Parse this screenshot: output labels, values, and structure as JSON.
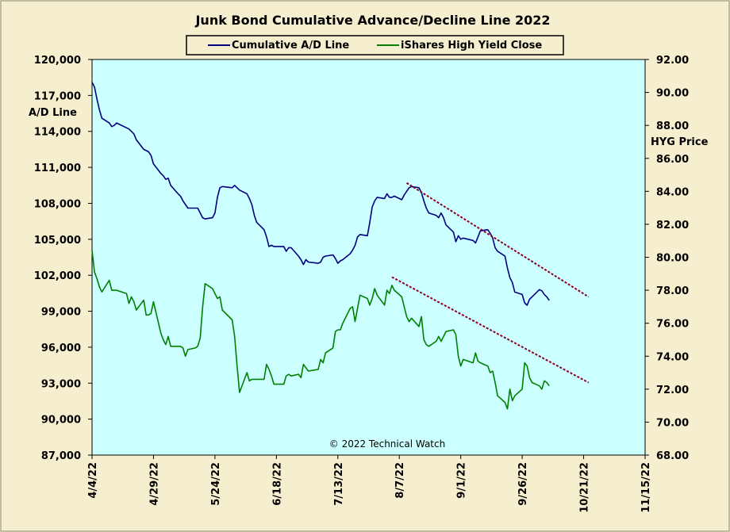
{
  "chart_data": {
    "type": "line",
    "title": "Junk Bond Cumulative  Advance/Decline  Line  2022",
    "watermark": "© 2022 Technical Watch",
    "ylabel_left": "A/D Line",
    "ylabel_right": "HYG Price",
    "grid": false,
    "legend_position": "top",
    "colors": {
      "background": "#f5efcf",
      "plot_area": "#ccffff",
      "ad_line": "#000080",
      "hyg_line": "#008000",
      "trendline": "#8b0020"
    },
    "left_axis": {
      "min": 87000,
      "max": 120000,
      "ticks": [
        "120,000",
        "117,000",
        "114,000",
        "111,000",
        "108,000",
        "105,000",
        "102,000",
        "99,000",
        "96,000",
        "93,000",
        "90,000",
        "87,000"
      ]
    },
    "right_axis": {
      "min": 68,
      "max": 92,
      "ticks": [
        "92.00",
        "90.00",
        "88.00",
        "86.00",
        "84.00",
        "82.00",
        "80.00",
        "78.00",
        "76.00",
        "74.00",
        "72.00",
        "70.00",
        "68.00"
      ]
    },
    "x_axis": {
      "start": "2022-04-04",
      "end": "2022-11-15",
      "tick_labels": [
        "4/4/22",
        "4/29/22",
        "5/24/22",
        "6/18/22",
        "7/13/22",
        "8/7/22",
        "9/1/22",
        "9/26/22",
        "10/21/22",
        "11/15/22"
      ]
    },
    "series": [
      {
        "name": "Cumulative A/D Line",
        "axis": "left",
        "x": [
          "2022-04-04",
          "2022-04-05",
          "2022-04-06",
          "2022-04-07",
          "2022-04-08",
          "2022-04-11",
          "2022-04-12",
          "2022-04-13",
          "2022-04-14",
          "2022-04-18",
          "2022-04-19",
          "2022-04-20",
          "2022-04-21",
          "2022-04-22",
          "2022-04-25",
          "2022-04-26",
          "2022-04-27",
          "2022-04-28",
          "2022-04-29",
          "2022-05-02",
          "2022-05-03",
          "2022-05-04",
          "2022-05-05",
          "2022-05-06",
          "2022-05-09",
          "2022-05-10",
          "2022-05-11",
          "2022-05-12",
          "2022-05-13",
          "2022-05-16",
          "2022-05-17",
          "2022-05-18",
          "2022-05-19",
          "2022-05-20",
          "2022-05-23",
          "2022-05-24",
          "2022-05-25",
          "2022-05-26",
          "2022-05-27",
          "2022-05-31",
          "2022-06-01",
          "2022-06-02",
          "2022-06-03",
          "2022-06-06",
          "2022-06-07",
          "2022-06-08",
          "2022-06-09",
          "2022-06-10",
          "2022-06-13",
          "2022-06-14",
          "2022-06-15",
          "2022-06-16",
          "2022-06-17",
          "2022-06-21",
          "2022-06-22",
          "2022-06-23",
          "2022-06-24",
          "2022-06-27",
          "2022-06-28",
          "2022-06-29",
          "2022-06-30",
          "2022-07-01",
          "2022-07-05",
          "2022-07-06",
          "2022-07-07",
          "2022-07-08",
          "2022-07-11",
          "2022-07-12",
          "2022-07-13",
          "2022-07-14",
          "2022-07-15",
          "2022-07-18",
          "2022-07-19",
          "2022-07-20",
          "2022-07-21",
          "2022-07-22",
          "2022-07-25",
          "2022-07-26",
          "2022-07-27",
          "2022-07-28",
          "2022-07-29",
          "2022-08-01",
          "2022-08-02",
          "2022-08-03",
          "2022-08-04",
          "2022-08-05",
          "2022-08-08",
          "2022-08-09",
          "2022-08-10",
          "2022-08-11",
          "2022-08-12",
          "2022-08-15",
          "2022-08-16",
          "2022-08-17",
          "2022-08-18",
          "2022-08-19",
          "2022-08-22",
          "2022-08-23",
          "2022-08-24",
          "2022-08-25",
          "2022-08-26",
          "2022-08-29",
          "2022-08-30",
          "2022-08-31",
          "2022-09-01",
          "2022-09-02",
          "2022-09-06",
          "2022-09-07",
          "2022-09-08",
          "2022-09-09",
          "2022-09-12",
          "2022-09-13",
          "2022-09-14",
          "2022-09-15",
          "2022-09-16",
          "2022-09-19",
          "2022-09-20",
          "2022-09-21",
          "2022-09-22",
          "2022-09-23",
          "2022-09-26",
          "2022-09-27",
          "2022-09-28",
          "2022-09-29",
          "2022-09-30",
          "2022-10-03",
          "2022-10-04",
          "2022-10-05",
          "2022-10-06",
          "2022-10-07"
        ],
        "values": [
          118100,
          117700,
          116700,
          115800,
          115100,
          114700,
          114400,
          114500,
          114700,
          114300,
          114200,
          114000,
          113800,
          113300,
          112500,
          112400,
          112300,
          112000,
          111300,
          110500,
          110300,
          110000,
          110100,
          109500,
          108800,
          108600,
          108200,
          107900,
          107600,
          107600,
          107600,
          107200,
          106800,
          106700,
          106800,
          107200,
          108500,
          109300,
          109400,
          109300,
          109500,
          109300,
          109100,
          108800,
          108400,
          107900,
          107000,
          106400,
          105800,
          105200,
          104400,
          104500,
          104400,
          104400,
          104000,
          104300,
          104300,
          103600,
          103300,
          102900,
          103300,
          103100,
          103000,
          103100,
          103500,
          103600,
          103700,
          103400,
          103000,
          103200,
          103300,
          103800,
          104100,
          104500,
          105200,
          105400,
          105300,
          106400,
          107700,
          108200,
          108500,
          108400,
          108800,
          108500,
          108500,
          108600,
          108300,
          108700,
          109000,
          109300,
          109400,
          109300,
          108900,
          108200,
          107600,
          107200,
          107000,
          106800,
          107200,
          106800,
          106200,
          105600,
          104800,
          105300,
          105000,
          105100,
          104900,
          104700,
          105200,
          105700,
          105800,
          105500,
          105100,
          104300,
          104000,
          103600,
          102600,
          101800,
          101400,
          100600,
          100400,
          99700,
          99500,
          100000,
          100200,
          100800,
          100700,
          100400,
          100200,
          99900
        ],
        "trendline": {
          "start": {
            "x": "2022-08-10",
            "y": 109700
          },
          "end": {
            "x": "2022-10-23",
            "y": 100200
          }
        }
      },
      {
        "name": "iShares High Yield Close",
        "axis": "right",
        "x": [
          "2022-04-04",
          "2022-04-05",
          "2022-04-06",
          "2022-04-07",
          "2022-04-08",
          "2022-04-11",
          "2022-04-12",
          "2022-04-13",
          "2022-04-14",
          "2022-04-18",
          "2022-04-19",
          "2022-04-20",
          "2022-04-21",
          "2022-04-22",
          "2022-04-25",
          "2022-04-26",
          "2022-04-27",
          "2022-04-28",
          "2022-04-29",
          "2022-05-02",
          "2022-05-03",
          "2022-05-04",
          "2022-05-05",
          "2022-05-06",
          "2022-05-09",
          "2022-05-10",
          "2022-05-11",
          "2022-05-12",
          "2022-05-13",
          "2022-05-16",
          "2022-05-17",
          "2022-05-18",
          "2022-05-19",
          "2022-05-20",
          "2022-05-23",
          "2022-05-24",
          "2022-05-25",
          "2022-05-26",
          "2022-05-27",
          "2022-05-31",
          "2022-06-01",
          "2022-06-02",
          "2022-06-03",
          "2022-06-06",
          "2022-06-07",
          "2022-06-08",
          "2022-06-09",
          "2022-06-10",
          "2022-06-13",
          "2022-06-14",
          "2022-06-15",
          "2022-06-16",
          "2022-06-17",
          "2022-06-21",
          "2022-06-22",
          "2022-06-23",
          "2022-06-24",
          "2022-06-27",
          "2022-06-28",
          "2022-06-29",
          "2022-06-30",
          "2022-07-01",
          "2022-07-05",
          "2022-07-06",
          "2022-07-07",
          "2022-07-08",
          "2022-07-11",
          "2022-07-12",
          "2022-07-13",
          "2022-07-14",
          "2022-07-15",
          "2022-07-18",
          "2022-07-19",
          "2022-07-20",
          "2022-07-21",
          "2022-07-22",
          "2022-07-25",
          "2022-07-26",
          "2022-07-27",
          "2022-07-28",
          "2022-07-29",
          "2022-08-01",
          "2022-08-02",
          "2022-08-03",
          "2022-08-04",
          "2022-08-05",
          "2022-08-08",
          "2022-08-09",
          "2022-08-10",
          "2022-08-11",
          "2022-08-12",
          "2022-08-15",
          "2022-08-16",
          "2022-08-17",
          "2022-08-18",
          "2022-08-19",
          "2022-08-22",
          "2022-08-23",
          "2022-08-24",
          "2022-08-25",
          "2022-08-26",
          "2022-08-29",
          "2022-08-30",
          "2022-08-31",
          "2022-09-01",
          "2022-09-02",
          "2022-09-06",
          "2022-09-07",
          "2022-09-08",
          "2022-09-09",
          "2022-09-12",
          "2022-09-13",
          "2022-09-14",
          "2022-09-15",
          "2022-09-16",
          "2022-09-19",
          "2022-09-20",
          "2022-09-21",
          "2022-09-22",
          "2022-09-23",
          "2022-09-26",
          "2022-09-27",
          "2022-09-28",
          "2022-09-29",
          "2022-09-30",
          "2022-10-03",
          "2022-10-04",
          "2022-10-05",
          "2022-10-06",
          "2022-10-07"
        ],
        "values": [
          80.4,
          79.1,
          78.7,
          78.2,
          77.9,
          78.6,
          78.0,
          78.0,
          78.0,
          77.8,
          77.2,
          77.6,
          77.3,
          76.8,
          77.4,
          76.5,
          76.5,
          76.6,
          77.3,
          75.4,
          75.0,
          74.7,
          75.2,
          74.6,
          74.6,
          74.6,
          74.5,
          74.0,
          74.4,
          74.5,
          74.6,
          75.1,
          77.0,
          78.4,
          78.1,
          77.8,
          77.5,
          77.6,
          76.8,
          76.2,
          75.2,
          73.4,
          71.8,
          73.0,
          72.5,
          72.6,
          72.6,
          72.6,
          72.6,
          73.5,
          73.2,
          72.8,
          72.3,
          72.3,
          72.8,
          72.9,
          72.8,
          72.9,
          72.7,
          73.5,
          73.3,
          73.1,
          73.2,
          73.8,
          73.6,
          74.2,
          74.5,
          75.5,
          75.6,
          75.6,
          76.0,
          76.9,
          77.0,
          76.1,
          76.9,
          77.7,
          77.5,
          77.1,
          77.5,
          78.1,
          77.7,
          77.1,
          78.0,
          77.8,
          78.3,
          78.0,
          77.6,
          77.0,
          76.4,
          76.1,
          76.3,
          75.8,
          76.4,
          75.0,
          74.7,
          74.6,
          74.9,
          75.2,
          74.9,
          75.2,
          75.5,
          75.6,
          75.3,
          74.0,
          73.4,
          73.8,
          73.6,
          74.2,
          73.7,
          73.6,
          73.4,
          73.0,
          73.1,
          72.4,
          71.6,
          71.2,
          70.8,
          72.0,
          71.3,
          71.6,
          72.0,
          73.6,
          73.4,
          72.7,
          72.4,
          72.2,
          72.0,
          72.5,
          72.4,
          72.2
        ],
        "trendline": {
          "start": {
            "x": "2022-08-04",
            "y": 78.8
          },
          "end": {
            "x": "2022-10-23",
            "y": 72.4
          }
        }
      }
    ]
  }
}
